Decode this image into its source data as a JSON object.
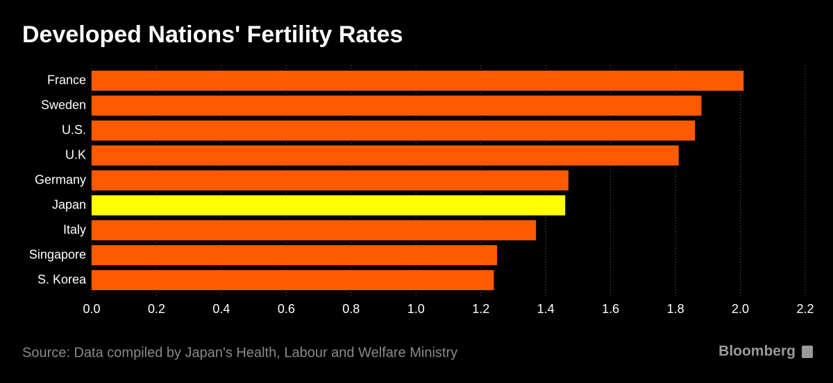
{
  "chart_data": {
    "type": "hbar",
    "title": "Developed Nations' Fertility Rates",
    "categories": [
      "France",
      "Sweden",
      "U.S.",
      "U.K",
      "Germany",
      "Japan",
      "Italy",
      "Singapore",
      "S. Korea"
    ],
    "values": [
      2.01,
      1.88,
      1.86,
      1.81,
      1.47,
      1.46,
      1.37,
      1.25,
      1.24
    ],
    "colors": [
      "#ff5a00",
      "#ff5a00",
      "#ff5a00",
      "#ff5a00",
      "#ff5a00",
      "#ffff00",
      "#ff5a00",
      "#ff5a00",
      "#ff5a00"
    ],
    "xlim": [
      0,
      2.2
    ],
    "xticks": [
      {
        "value": 0,
        "label": "0.0"
      },
      0.2,
      0.4,
      0.6,
      0.8,
      {
        "value": 1,
        "label": "1.0"
      },
      1.2,
      1.4,
      1.6,
      1.8,
      {
        "value": 2,
        "label": "2.0"
      },
      2.2
    ],
    "grid": true,
    "source": "Source: Data compiled by Japan's Health, Labour and Welfare Ministry",
    "brand": "Bloomberg"
  }
}
